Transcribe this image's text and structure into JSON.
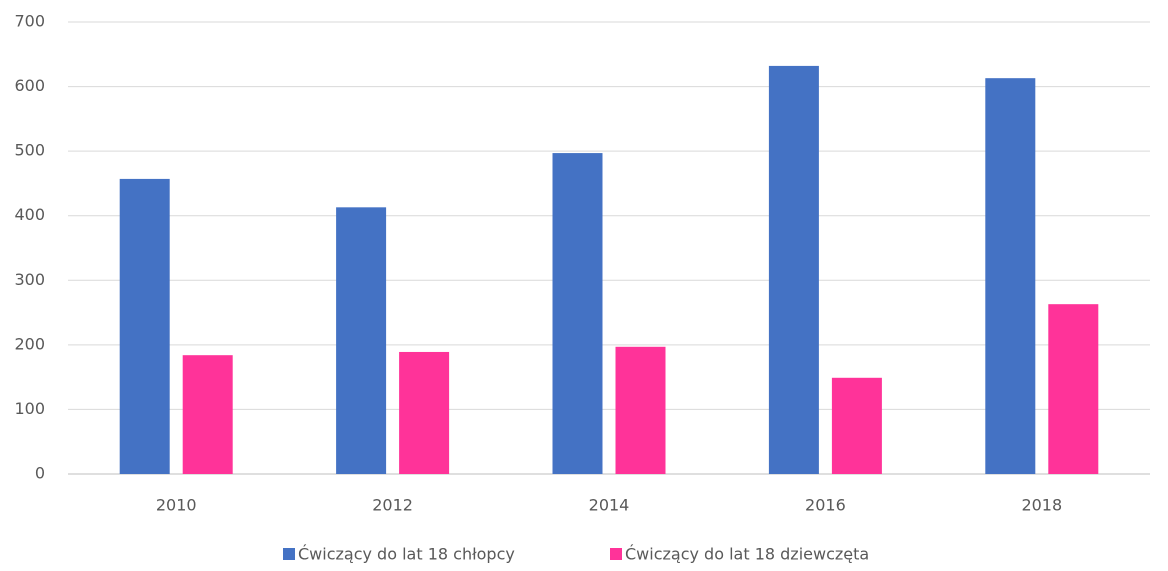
{
  "chart_data": {
    "type": "bar",
    "categories": [
      "2010",
      "2012",
      "2014",
      "2016",
      "2018"
    ],
    "series": [
      {
        "name": "Ćwiczący do lat 18 chłopcy",
        "color": "#4472c4",
        "values": [
          457,
          413,
          497,
          632,
          613
        ]
      },
      {
        "name": "Ćwiczący do lat 18 dziewczęta",
        "color": "#ff3399",
        "values": [
          184,
          189,
          197,
          149,
          263
        ]
      }
    ],
    "ylim": [
      0,
      700
    ],
    "yticks": [
      0,
      100,
      200,
      300,
      400,
      500,
      600,
      700
    ],
    "grid": true,
    "legend": "bottom"
  }
}
